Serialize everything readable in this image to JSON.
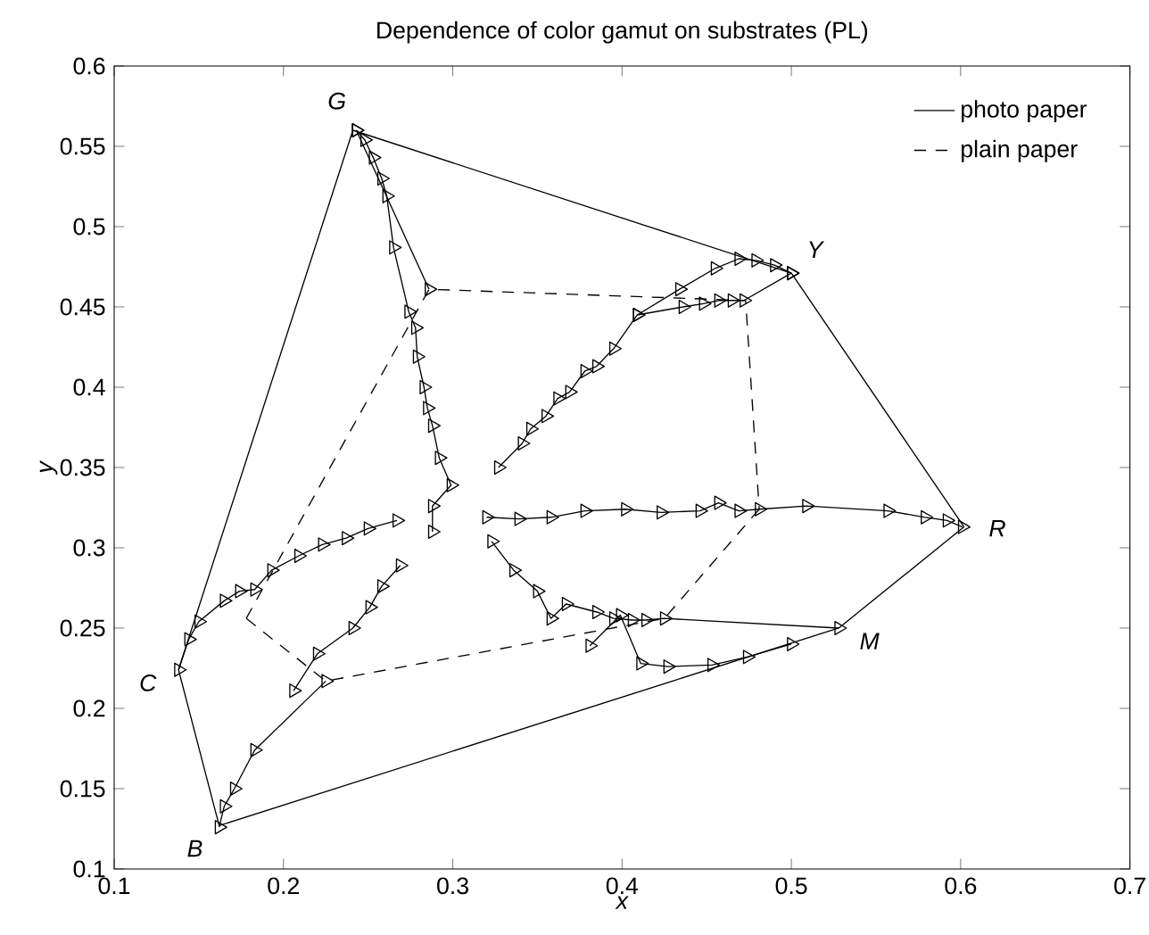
{
  "chart_data": {
    "type": "line",
    "title": "Dependence of color gamut on substrates (PL)",
    "xlabel": "x",
    "ylabel": "y",
    "xlim": [
      0.1,
      0.7
    ],
    "ylim": [
      0.1,
      0.6
    ],
    "xticks": [
      0.1,
      0.2,
      0.3,
      0.4,
      0.5,
      0.6,
      0.7
    ],
    "yticks": [
      0.1,
      0.15,
      0.2,
      0.25,
      0.3,
      0.35,
      0.4,
      0.45,
      0.5,
      0.55,
      0.6
    ],
    "legend": "top right",
    "series": [
      {
        "color": "#000000",
        "marker": "triangle",
        "line_style": "solid",
        "x": [
          0.243,
          0.248,
          0.253,
          0.258,
          0.261,
          0.265,
          0.274,
          0.278,
          0.279,
          0.283,
          0.285,
          0.288,
          0.292,
          0.299,
          0.288,
          0.288
        ],
        "values": [
          0.56,
          0.554,
          0.543,
          0.53,
          0.519,
          0.487,
          0.447,
          0.437,
          0.419,
          0.4,
          0.387,
          0.376,
          0.356,
          0.339,
          0.326,
          0.31
        ]
      },
      {
        "color": "#000000",
        "marker": "triangle",
        "line_style": "solid",
        "x": [
          0.243,
          0.286
        ],
        "values": [
          0.56,
          0.461
        ]
      },
      {
        "color": "#000000",
        "marker": "triangle",
        "line_style": "solid",
        "x": [
          0.327,
          0.341,
          0.346,
          0.355,
          0.362,
          0.369,
          0.378,
          0.385,
          0.395,
          0.409,
          0.434,
          0.455,
          0.469,
          0.479,
          0.49,
          0.5
        ],
        "values": [
          0.35,
          0.365,
          0.374,
          0.382,
          0.393,
          0.397,
          0.41,
          0.413,
          0.424,
          0.445,
          0.461,
          0.474,
          0.48,
          0.479,
          0.476,
          0.471
        ]
      },
      {
        "color": "#000000",
        "marker": "triangle",
        "line_style": "solid",
        "x": [
          0.409,
          0.436,
          0.448,
          0.457,
          0.465,
          0.472,
          0.5
        ],
        "values": [
          0.445,
          0.45,
          0.452,
          0.454,
          0.454,
          0.454,
          0.471
        ]
      },
      {
        "color": "#000000",
        "marker": "triangle",
        "line_style": "solid",
        "x": [
          0.32,
          0.339,
          0.358,
          0.378,
          0.402,
          0.423,
          0.446,
          0.457,
          0.469,
          0.481,
          0.509,
          0.557,
          0.579,
          0.592,
          0.601
        ],
        "values": [
          0.319,
          0.318,
          0.319,
          0.323,
          0.324,
          0.322,
          0.323,
          0.328,
          0.323,
          0.324,
          0.326,
          0.323,
          0.319,
          0.317,
          0.313
        ]
      },
      {
        "color": "#000000",
        "marker": "triangle",
        "line_style": "solid",
        "x": [
          0.323,
          0.336,
          0.35,
          0.358,
          0.367,
          0.385,
          0.395,
          0.406,
          0.414,
          0.425,
          0.528
        ],
        "values": [
          0.304,
          0.286,
          0.273,
          0.256,
          0.265,
          0.26,
          0.256,
          0.255,
          0.255,
          0.256,
          0.25
        ]
      },
      {
        "color": "#000000",
        "marker": "triangle",
        "line_style": "solid",
        "x": [
          0.381,
          0.399,
          0.411,
          0.427,
          0.453,
          0.474,
          0.5
        ],
        "values": [
          0.239,
          0.258,
          0.228,
          0.226,
          0.227,
          0.232,
          0.24
        ]
      },
      {
        "color": "#000000",
        "marker": "triangle",
        "line_style": "solid",
        "x": [
          0.267,
          0.25,
          0.237,
          0.223,
          0.209,
          0.193,
          0.183,
          0.174,
          0.165,
          0.15,
          0.144,
          0.138
        ],
        "values": [
          0.317,
          0.312,
          0.306,
          0.302,
          0.295,
          0.286,
          0.274,
          0.273,
          0.267,
          0.254,
          0.243,
          0.224
        ]
      },
      {
        "color": "#000000",
        "marker": "triangle",
        "line_style": "solid",
        "x": [
          0.269,
          0.258,
          0.251,
          0.241,
          0.22,
          0.206
        ],
        "values": [
          0.289,
          0.276,
          0.263,
          0.25,
          0.234,
          0.211
        ]
      },
      {
        "color": "#000000",
        "marker": "triangle",
        "line_style": "solid",
        "x": [
          0.225,
          0.183,
          0.171,
          0.165,
          0.162
        ],
        "values": [
          0.217,
          0.174,
          0.15,
          0.139,
          0.126
        ]
      },
      {
        "name": "photo paper",
        "color": "#000000",
        "marker": "none",
        "line_style": "solid",
        "x": [
          0.138,
          0.241,
          0.5,
          0.602,
          null,
          0.602,
          0.528,
          0.162,
          0.138
        ],
        "values": [
          0.224,
          0.56,
          0.471,
          0.313,
          null,
          0.313,
          0.25,
          0.127,
          0.224
        ]
      },
      {
        "name": "plain paper",
        "color": "#000000",
        "marker": "none",
        "line_style": "dashed",
        "x": [
          0.178,
          0.286,
          0.473,
          0.481,
          null,
          0.481,
          0.425,
          0.225,
          0.178
        ],
        "values": [
          0.256,
          0.461,
          0.454,
          0.324,
          null,
          0.324,
          0.256,
          0.217,
          0.256
        ]
      }
    ],
    "annotations": [
      {
        "text": "G",
        "x": 0.241,
        "y": 0.56
      },
      {
        "text": "Y",
        "x": 0.5,
        "y": 0.471
      },
      {
        "text": "R",
        "x": 0.602,
        "y": 0.313
      },
      {
        "text": "M",
        "x": 0.528,
        "y": 0.25
      },
      {
        "text": "B",
        "x": 0.162,
        "y": 0.127
      },
      {
        "text": "C",
        "x": 0.138,
        "y": 0.224
      }
    ]
  }
}
